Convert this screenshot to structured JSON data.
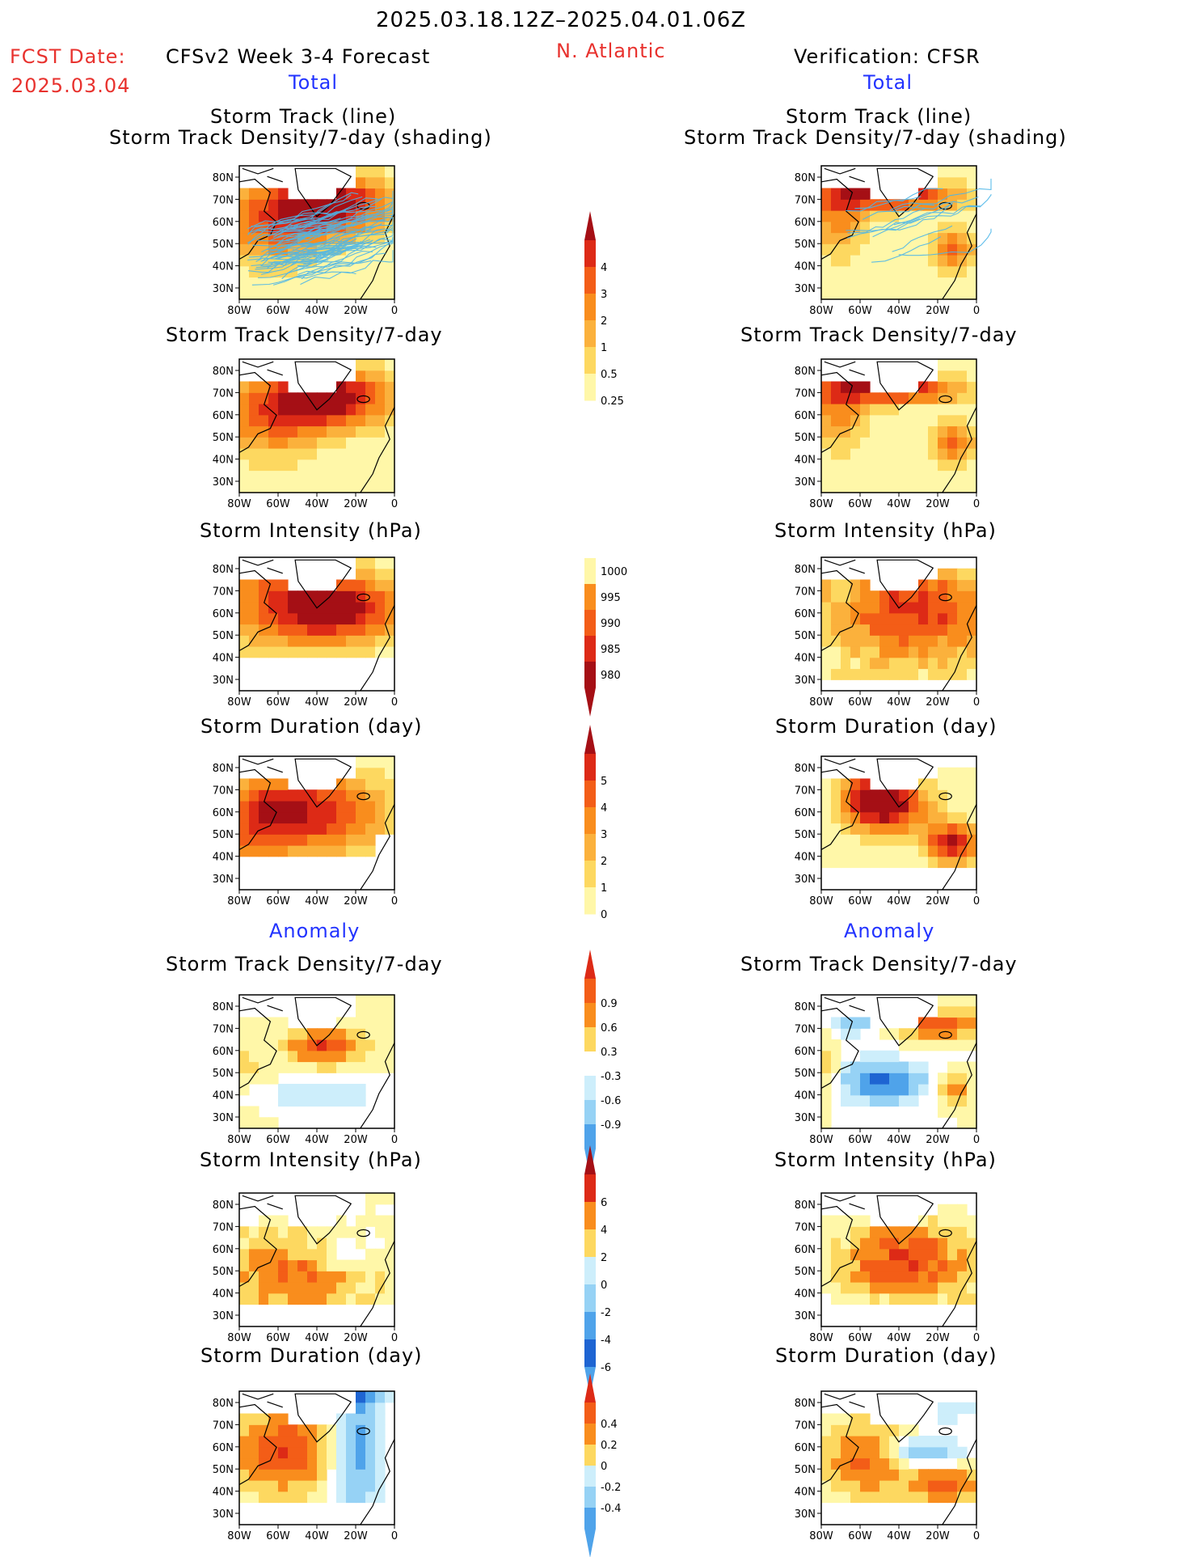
{
  "header": {
    "date_range": "2025.03.18.12Z–2025.04.01.06Z",
    "fcst_label": "FCST Date:",
    "fcst_date": "2025.03.04",
    "left_title": "CFSv2 Week 3-4 Forecast",
    "region": "N. Atlantic",
    "right_title": "Verification: CFSR",
    "total_left": "Total",
    "total_right": "Total",
    "anomaly_left": "Anomaly",
    "anomaly_right": "Anomaly"
  },
  "panels": {
    "track_title_1": "Storm Track (line)",
    "track_title_2": "Storm Track Density/7-day (shading)",
    "density_title": "Storm Track Density/7-day",
    "intensity_title": "Storm Intensity (hPa)",
    "duration_title": "Storm Duration (day)"
  },
  "colors": {
    "pale_yellow": "#fff7a8",
    "yellow": "#fdd860",
    "light_orange": "#fbb13c",
    "orange": "#f98d1d",
    "dark_orange": "#f35d17",
    "red": "#dd2a16",
    "dark_red": "#a50f15",
    "pale_blue": "#cdeefb",
    "light_blue": "#96d2f5",
    "blue": "#4fa3ea",
    "dark_blue": "#1e64d2",
    "track_line": "#4db6e8"
  },
  "chart_data": {
    "type": "heatmap",
    "x_ticks": [
      "80W",
      "60W",
      "40W",
      "20W",
      "0"
    ],
    "y_ticks": [
      "80N",
      "70N",
      "60N",
      "50N",
      "40N",
      "30N"
    ],
    "xlim": [
      -80,
      0
    ],
    "ylim": [
      25,
      85
    ],
    "colorbars": [
      {
        "name": "density_total",
        "levels": [
          "0.25",
          "0.5",
          "1",
          "2",
          "3",
          "4"
        ]
      },
      {
        "name": "intensity_total",
        "levels": [
          "1000",
          "995",
          "990",
          "985",
          "980"
        ]
      },
      {
        "name": "duration_total",
        "levels": [
          "0",
          "1",
          "2",
          "3",
          "4",
          "5"
        ]
      },
      {
        "name": "density_anomaly",
        "levels": [
          "0.9",
          "0.6",
          "0.3",
          "-0.3",
          "-0.6",
          "-0.9"
        ]
      },
      {
        "name": "intensity_anomaly",
        "levels": [
          "6",
          "4",
          "2",
          "0",
          "-2",
          "-4",
          "-6"
        ]
      },
      {
        "name": "duration_anomaly",
        "levels": [
          "0.4",
          "0.2",
          "0",
          "-0.2",
          "-0.4"
        ]
      }
    ]
  }
}
